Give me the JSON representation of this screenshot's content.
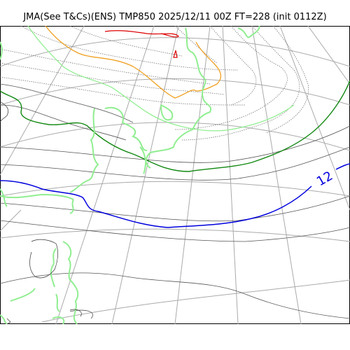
{
  "title": "JMA(See T&Cs)(ENS) TMP850 2025/12/11 00Z FT=228 (init 0112Z)",
  "map": {
    "projection": "polar-stereographic",
    "colors": {
      "graticule": "#aaaaaa",
      "coastline": "#90ee90",
      "contour_dark": "#555555",
      "contour_dotted": "#666666",
      "contour_minus24": "#dd0000",
      "contour_minus18": "#f0a020",
      "contour_minus6": "#90ee90",
      "contour_0": "#118811",
      "contour_12": "#0000dd"
    },
    "labeled_contour": {
      "text": "12",
      "color": "#0000dd"
    }
  }
}
